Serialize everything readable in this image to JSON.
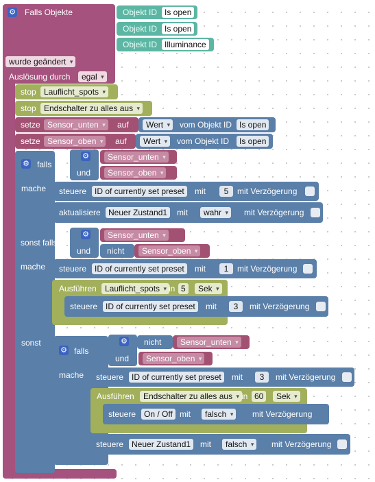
{
  "trigger": {
    "title": "Falls Objekte",
    "object_label": "Objekt ID",
    "objects": [
      "Is open",
      "Is open",
      "Illuminance"
    ],
    "changed_dropdown": "wurde geändert",
    "trigger_by_label": "Auslösung durch",
    "trigger_by_value": "egal"
  },
  "stops": [
    {
      "label": "stop",
      "value": "Lauflicht_spots"
    },
    {
      "label": "stop",
      "value": "Endschalter zu alles aus"
    }
  ],
  "sets": [
    {
      "label": "setze",
      "var": "Sensor_unten",
      "on": "auf",
      "attr": "Wert",
      "from": "vom Objekt ID",
      "obj": "Is open"
    },
    {
      "label": "setze",
      "var": "Sensor_oben",
      "on": "auf",
      "attr": "Wert",
      "from": "vom Objekt ID",
      "obj": "Is open"
    }
  ],
  "if_block": {
    "if_label": "falls",
    "do_label": "mache",
    "elseif_label": "sonst falls",
    "else_label": "sonst",
    "and_label": "und",
    "not_label": "nicht",
    "var_unten": "Sensor_unten",
    "var_oben": "Sensor_oben"
  },
  "controls": {
    "control_label": "steuere",
    "update_label": "aktualisiere",
    "with_label": "mit",
    "delay_label": "mit Verzögerung",
    "preset": "ID of currently set preset",
    "new_state": "Neuer Zustand1",
    "onoff": "On / Off",
    "val5": "5",
    "val1": "1",
    "val3": "3",
    "true_val": "wahr",
    "false_val": "falsch"
  },
  "timeouts": {
    "exec_label": "Ausführen",
    "in_label": "in",
    "t1_name": "Lauflicht_spots",
    "t1_val": "5",
    "t2_name": "Endschalter zu alles aus",
    "t2_val": "60",
    "unit": "Sek"
  }
}
